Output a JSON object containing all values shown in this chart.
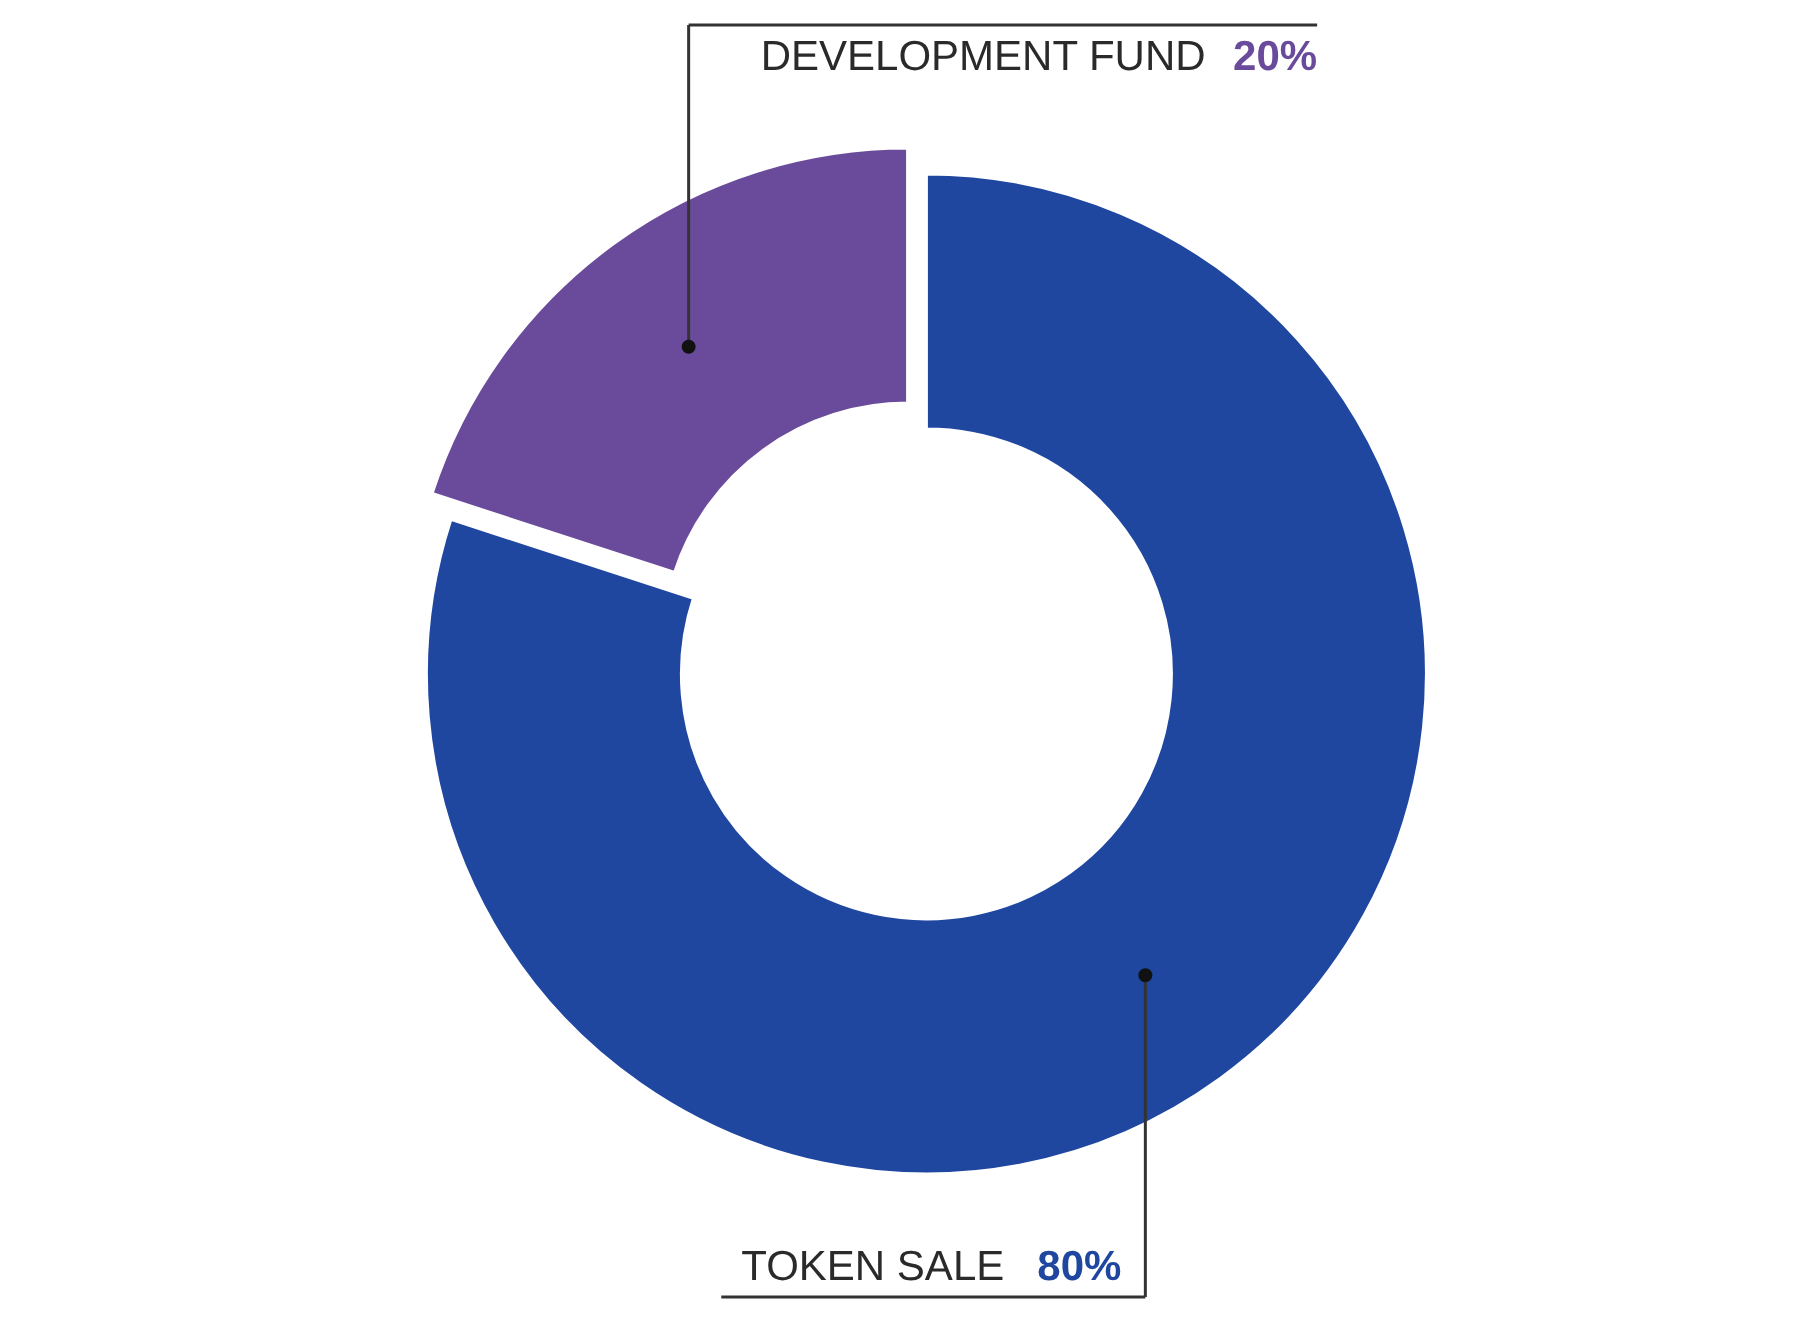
{
  "chart_data": {
    "type": "donut",
    "categories": [
      "DEVELOPMENT FUND",
      "TOKEN SALE"
    ],
    "values": [
      20,
      80
    ],
    "colors": [
      "#6a4b9b",
      "#1f47a0"
    ],
    "value_labels": [
      "20%",
      "80%"
    ]
  }
}
